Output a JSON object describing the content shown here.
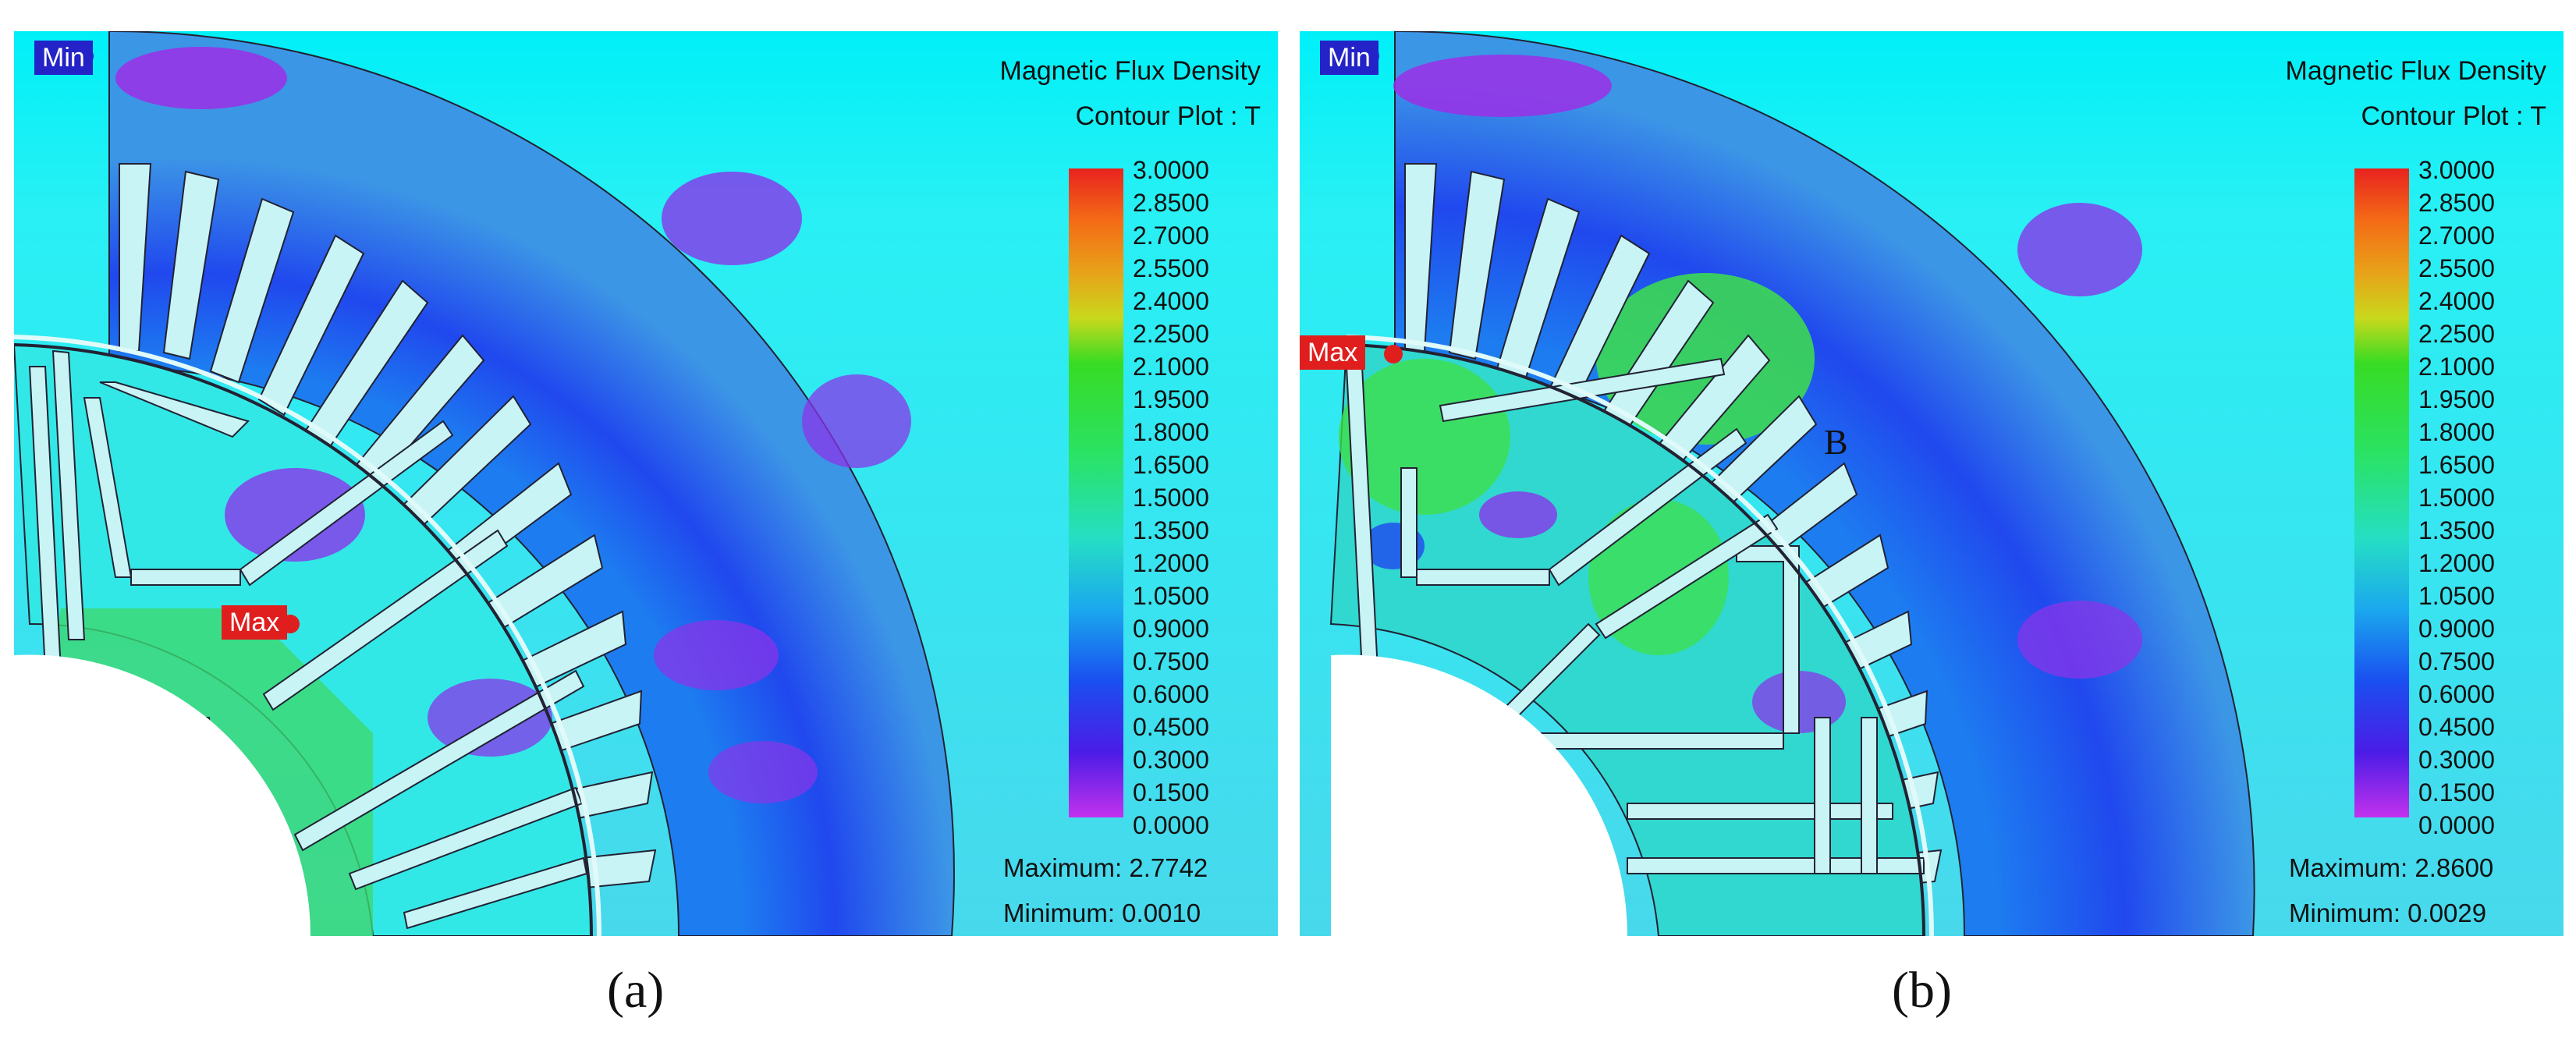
{
  "figure": {
    "panel_a": {
      "title_line1": "Magnetic Flux Density",
      "title_line2": "Contour Plot : T",
      "maximum": "Maximum: 2.7742",
      "minimum": "Minimum: 0.0010",
      "min_tag": "Min",
      "max_tag": "Max",
      "caption": "(a)"
    },
    "panel_b": {
      "title_line1": "Magnetic Flux Density",
      "title_line2": "Contour Plot : T",
      "maximum": "Maximum: 2.8600",
      "minimum": "Minimum: 0.0029",
      "min_tag": "Min",
      "max_tag": "Max",
      "region_label": "B",
      "caption": "(b)"
    },
    "colorbar_ticks": [
      "3.0000",
      "2.8500",
      "2.7000",
      "2.5500",
      "2.4000",
      "2.2500",
      "2.1000",
      "1.9500",
      "1.8000",
      "1.6500",
      "1.5000",
      "1.3500",
      "1.2000",
      "1.0500",
      "0.9000",
      "0.7500",
      "0.6000",
      "0.4500",
      "0.3000",
      "0.1500",
      "0.0000"
    ],
    "colors": {
      "background_top": "#00f0f8",
      "background_bottom": "#3fd8ee",
      "stator_inner": "#2a5ce8",
      "stator_outer": "#3c9ae4",
      "low_flux": "#9b2fe6",
      "mid_flux": "#1ad8b4",
      "high_flux": "#3ee04a",
      "slot_fill": "#c8f4f6"
    }
  }
}
